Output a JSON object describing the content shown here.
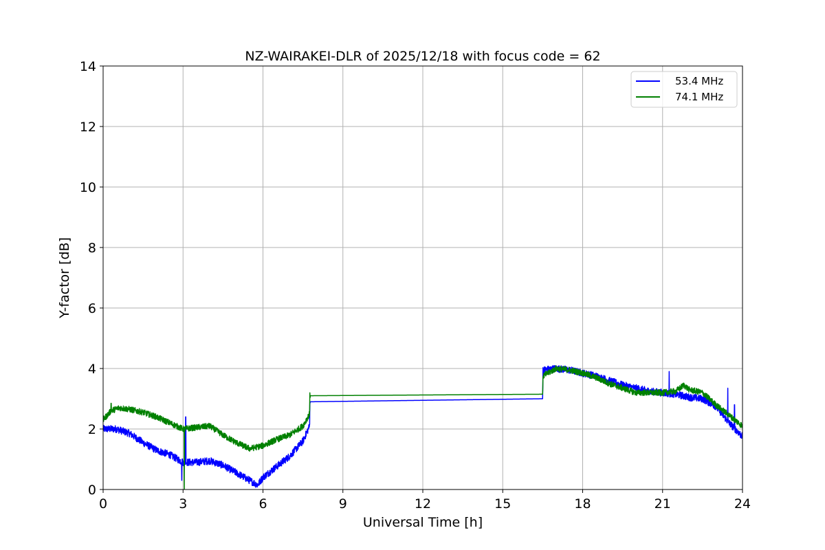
{
  "chart_data": {
    "type": "line",
    "title": "NZ-WAIRAKEI-DLR of 2025/12/18 with focus code = 62",
    "xlabel": "Universal Time [h]",
    "ylabel": "Y-factor [dB]",
    "xlim": [
      0,
      24
    ],
    "ylim": [
      0,
      14
    ],
    "xticks": [
      0,
      3,
      6,
      9,
      12,
      15,
      18,
      21,
      24
    ],
    "yticks": [
      0,
      2,
      4,
      6,
      8,
      10,
      12,
      14
    ],
    "grid": true,
    "legend_position": "top-right",
    "series": [
      {
        "name": "53.4 MHz",
        "color": "#0000ff",
        "noise": 0.12,
        "x": [
          0,
          0.5,
          1,
          1.5,
          2,
          2.5,
          3,
          3.5,
          4,
          4.5,
          5,
          5.5,
          5.8,
          6,
          6.5,
          7,
          7.5,
          7.75,
          7.76,
          16.5,
          16.51,
          17,
          17.5,
          18,
          18.5,
          19,
          19.5,
          20,
          20.5,
          21,
          21.5,
          22,
          22.5,
          23,
          23.5,
          24
        ],
        "y": [
          2.0,
          2.0,
          1.85,
          1.55,
          1.3,
          1.15,
          0.9,
          0.9,
          0.95,
          0.8,
          0.55,
          0.3,
          0.15,
          0.4,
          0.75,
          1.1,
          1.6,
          2.1,
          2.9,
          3.0,
          3.95,
          4.0,
          3.95,
          3.85,
          3.75,
          3.6,
          3.45,
          3.35,
          3.25,
          3.2,
          3.15,
          3.05,
          3.0,
          2.75,
          2.2,
          1.75
        ],
        "spikes": [
          {
            "x": 2.95,
            "y": 0.3
          },
          {
            "x": 3.1,
            "y": 2.4
          },
          {
            "x": 21.25,
            "y": 3.9
          },
          {
            "x": 23.45,
            "y": 3.35
          },
          {
            "x": 23.7,
            "y": 2.8
          }
        ]
      },
      {
        "name": "74.1 MHz",
        "color": "#008000",
        "noise": 0.1,
        "x": [
          0,
          0.3,
          0.6,
          1,
          1.5,
          2,
          2.5,
          3,
          3.5,
          4,
          4.5,
          5,
          5.5,
          6,
          6.5,
          7,
          7.5,
          7.75,
          7.76,
          16.5,
          16.51,
          17,
          17.5,
          18,
          18.5,
          19,
          19.5,
          20,
          20.5,
          21,
          21.5,
          21.8,
          22,
          22.5,
          23,
          23.5,
          24
        ],
        "y": [
          2.3,
          2.6,
          2.7,
          2.65,
          2.55,
          2.4,
          2.2,
          2.0,
          2.05,
          2.1,
          1.8,
          1.55,
          1.35,
          1.45,
          1.65,
          1.8,
          2.1,
          2.5,
          3.1,
          3.15,
          3.75,
          4.0,
          3.95,
          3.85,
          3.7,
          3.5,
          3.35,
          3.2,
          3.2,
          3.2,
          3.25,
          3.45,
          3.3,
          3.2,
          2.8,
          2.45,
          2.1
        ],
        "spikes": [
          {
            "x": 3.05,
            "y": 0.0
          },
          {
            "x": 0.3,
            "y": 2.85
          }
        ]
      }
    ]
  }
}
